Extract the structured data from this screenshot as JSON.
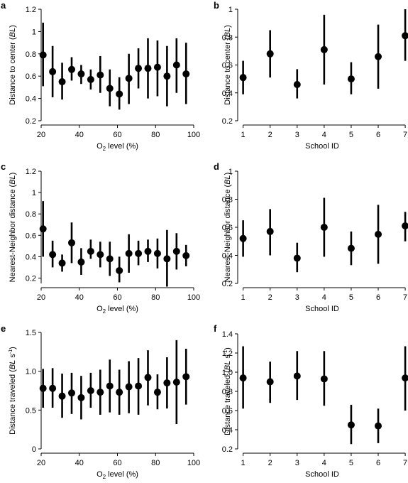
{
  "chart_data": [
    {
      "panel": "a",
      "type": "scatter",
      "xlabel": "O2 level (%)",
      "ylabel": "Distance to center (BL)",
      "xlim": [
        20,
        100
      ],
      "ylim": [
        0.2,
        1.2
      ],
      "xticks": [
        20,
        40,
        60,
        80,
        100
      ],
      "yticks": [
        0.2,
        0.4,
        0.6,
        0.8,
        1.0,
        1.2
      ],
      "ytick_labels": [
        "0.2",
        "0.4",
        "0.6",
        "0.8",
        "1",
        "1.2"
      ],
      "points": [
        {
          "x": 21,
          "y": 0.79,
          "lo": 0.51,
          "hi": 1.08
        },
        {
          "x": 26,
          "y": 0.64,
          "lo": 0.41,
          "hi": 0.87
        },
        {
          "x": 31,
          "y": 0.55,
          "lo": 0.39,
          "hi": 0.72
        },
        {
          "x": 36,
          "y": 0.66,
          "lo": 0.56,
          "hi": 0.77
        },
        {
          "x": 41,
          "y": 0.62,
          "lo": 0.53,
          "hi": 0.7
        },
        {
          "x": 46,
          "y": 0.57,
          "lo": 0.48,
          "hi": 0.66
        },
        {
          "x": 51,
          "y": 0.61,
          "lo": 0.45,
          "hi": 0.78
        },
        {
          "x": 56,
          "y": 0.49,
          "lo": 0.33,
          "hi": 0.66
        },
        {
          "x": 61,
          "y": 0.44,
          "lo": 0.3,
          "hi": 0.59
        },
        {
          "x": 66,
          "y": 0.58,
          "lo": 0.35,
          "hi": 0.8
        },
        {
          "x": 71,
          "y": 0.67,
          "lo": 0.49,
          "hi": 0.85
        },
        {
          "x": 76,
          "y": 0.67,
          "lo": 0.4,
          "hi": 0.94
        },
        {
          "x": 81,
          "y": 0.68,
          "lo": 0.42,
          "hi": 0.92
        },
        {
          "x": 86,
          "y": 0.6,
          "lo": 0.33,
          "hi": 0.87
        },
        {
          "x": 91,
          "y": 0.7,
          "lo": 0.45,
          "hi": 0.94
        },
        {
          "x": 96,
          "y": 0.62,
          "lo": 0.35,
          "hi": 0.9
        }
      ]
    },
    {
      "panel": "b",
      "type": "scatter",
      "xlabel": "School ID",
      "ylabel": "Distance to center (BL)",
      "xlim": [
        0.8,
        7.05
      ],
      "ylim": [
        0.2,
        1.0
      ],
      "xticks": [
        1,
        2,
        3,
        4,
        5,
        6,
        7
      ],
      "yticks": [
        0.2,
        0.4,
        0.6,
        0.8,
        1.0
      ],
      "ytick_labels": [
        "0.2",
        "0.4",
        "0.6",
        "0.8",
        "1"
      ],
      "points": [
        {
          "x": 1,
          "y": 0.51,
          "lo": 0.39,
          "hi": 0.63
        },
        {
          "x": 2,
          "y": 0.68,
          "lo": 0.51,
          "hi": 0.85
        },
        {
          "x": 3,
          "y": 0.46,
          "lo": 0.36,
          "hi": 0.57
        },
        {
          "x": 4,
          "y": 0.71,
          "lo": 0.46,
          "hi": 0.96
        },
        {
          "x": 5,
          "y": 0.5,
          "lo": 0.39,
          "hi": 0.62
        },
        {
          "x": 6,
          "y": 0.66,
          "lo": 0.43,
          "hi": 0.89
        },
        {
          "x": 7,
          "y": 0.81,
          "lo": 0.63,
          "hi": 1.0
        }
      ]
    },
    {
      "panel": "c",
      "type": "scatter",
      "xlabel": "O2 level (%)",
      "ylabel": "Nearest-Neighbor distance (BL)",
      "xlim": [
        20,
        100
      ],
      "ylim": [
        0.15,
        1.2
      ],
      "xticks": [
        20,
        40,
        60,
        80,
        100
      ],
      "yticks": [
        0.2,
        0.4,
        0.6,
        0.8,
        1.0,
        1.2
      ],
      "ytick_labels": [
        "0.2",
        "0.4",
        "0.6",
        "0.8",
        "1",
        "1.2"
      ],
      "points": [
        {
          "x": 21,
          "y": 0.66,
          "lo": 0.4,
          "hi": 0.92
        },
        {
          "x": 26,
          "y": 0.42,
          "lo": 0.3,
          "hi": 0.55
        },
        {
          "x": 31,
          "y": 0.34,
          "lo": 0.26,
          "hi": 0.42
        },
        {
          "x": 36,
          "y": 0.53,
          "lo": 0.34,
          "hi": 0.72
        },
        {
          "x": 41,
          "y": 0.35,
          "lo": 0.23,
          "hi": 0.48
        },
        {
          "x": 46,
          "y": 0.45,
          "lo": 0.38,
          "hi": 0.56
        },
        {
          "x": 51,
          "y": 0.42,
          "lo": 0.3,
          "hi": 0.54
        },
        {
          "x": 56,
          "y": 0.38,
          "lo": 0.22,
          "hi": 0.54
        },
        {
          "x": 61,
          "y": 0.27,
          "lo": 0.16,
          "hi": 0.4
        },
        {
          "x": 66,
          "y": 0.43,
          "lo": 0.25,
          "hi": 0.61
        },
        {
          "x": 71,
          "y": 0.43,
          "lo": 0.32,
          "hi": 0.55
        },
        {
          "x": 76,
          "y": 0.45,
          "lo": 0.35,
          "hi": 0.56
        },
        {
          "x": 81,
          "y": 0.43,
          "lo": 0.29,
          "hi": 0.57
        },
        {
          "x": 86,
          "y": 0.38,
          "lo": 0.12,
          "hi": 0.65
        },
        {
          "x": 91,
          "y": 0.45,
          "lo": 0.28,
          "hi": 0.62
        },
        {
          "x": 96,
          "y": 0.41,
          "lo": 0.31,
          "hi": 0.51
        }
      ]
    },
    {
      "panel": "d",
      "type": "scatter",
      "xlabel": "School ID",
      "ylabel": "Nearest-Neighbor distance (BL)",
      "xlim": [
        0.8,
        7.05
      ],
      "ylim": [
        0.2,
        1.0
      ],
      "xticks": [
        1,
        2,
        3,
        4,
        5,
        6,
        7
      ],
      "yticks": [
        0.2,
        0.4,
        0.6,
        0.8,
        1.0
      ],
      "ytick_labels": [
        "0.2",
        "0.4",
        "0.6",
        "0.8",
        "1"
      ],
      "points": [
        {
          "x": 1,
          "y": 0.52,
          "lo": 0.39,
          "hi": 0.65
        },
        {
          "x": 2,
          "y": 0.57,
          "lo": 0.4,
          "hi": 0.73
        },
        {
          "x": 3,
          "y": 0.38,
          "lo": 0.28,
          "hi": 0.49
        },
        {
          "x": 4,
          "y": 0.6,
          "lo": 0.39,
          "hi": 0.81
        },
        {
          "x": 5,
          "y": 0.45,
          "lo": 0.33,
          "hi": 0.57
        },
        {
          "x": 6,
          "y": 0.55,
          "lo": 0.34,
          "hi": 0.76
        },
        {
          "x": 7,
          "y": 0.61,
          "lo": 0.5,
          "hi": 0.71
        }
      ]
    },
    {
      "panel": "e",
      "type": "scatter",
      "xlabel": "O2 level (%)",
      "ylabel": "Distance traveled (BL s-1)",
      "xlim": [
        20,
        100
      ],
      "ylim": [
        0,
        1.5
      ],
      "xticks": [
        20,
        40,
        60,
        80,
        100
      ],
      "yticks": [
        0,
        0.5,
        1.0,
        1.5
      ],
      "ytick_labels": [
        "0",
        "0.5",
        "1.0",
        "1.5"
      ],
      "points": [
        {
          "x": 21,
          "y": 0.78,
          "lo": 0.53,
          "hi": 1.03
        },
        {
          "x": 26,
          "y": 0.78,
          "lo": 0.53,
          "hi": 1.04
        },
        {
          "x": 31,
          "y": 0.68,
          "lo": 0.4,
          "hi": 0.97
        },
        {
          "x": 36,
          "y": 0.72,
          "lo": 0.45,
          "hi": 0.98
        },
        {
          "x": 41,
          "y": 0.66,
          "lo": 0.38,
          "hi": 0.94
        },
        {
          "x": 46,
          "y": 0.75,
          "lo": 0.53,
          "hi": 0.98
        },
        {
          "x": 51,
          "y": 0.73,
          "lo": 0.44,
          "hi": 1.02
        },
        {
          "x": 56,
          "y": 0.81,
          "lo": 0.47,
          "hi": 1.15
        },
        {
          "x": 61,
          "y": 0.73,
          "lo": 0.44,
          "hi": 1.02
        },
        {
          "x": 66,
          "y": 0.8,
          "lo": 0.46,
          "hi": 1.13
        },
        {
          "x": 71,
          "y": 0.81,
          "lo": 0.44,
          "hi": 1.17
        },
        {
          "x": 76,
          "y": 0.92,
          "lo": 0.56,
          "hi": 1.27
        },
        {
          "x": 81,
          "y": 0.73,
          "lo": 0.51,
          "hi": 0.96
        },
        {
          "x": 86,
          "y": 0.85,
          "lo": 0.52,
          "hi": 1.18
        },
        {
          "x": 91,
          "y": 0.86,
          "lo": 0.32,
          "hi": 1.4
        },
        {
          "x": 96,
          "y": 0.93,
          "lo": 0.57,
          "hi": 1.29
        }
      ]
    },
    {
      "panel": "f",
      "type": "scatter",
      "xlabel": "School ID",
      "ylabel": "Distance traveled (BL s-1)",
      "xlim": [
        0.8,
        7.05
      ],
      "ylim": [
        0.2,
        1.4
      ],
      "xticks": [
        1,
        2,
        3,
        4,
        5,
        6,
        7
      ],
      "yticks": [
        0.2,
        0.4,
        0.6,
        0.8,
        1.0,
        1.2,
        1.4
      ],
      "ytick_labels": [
        "0.2",
        "0.4",
        "0.6",
        "0.8",
        "1.0",
        "1.2",
        "1.4"
      ],
      "points": [
        {
          "x": 1,
          "y": 0.94,
          "lo": 0.62,
          "hi": 1.27
        },
        {
          "x": 2,
          "y": 0.9,
          "lo": 0.68,
          "hi": 1.11
        },
        {
          "x": 3,
          "y": 0.96,
          "lo": 0.71,
          "hi": 1.22
        },
        {
          "x": 4,
          "y": 0.93,
          "lo": 0.65,
          "hi": 1.22
        },
        {
          "x": 5,
          "y": 0.45,
          "lo": 0.25,
          "hi": 0.66
        },
        {
          "x": 6,
          "y": 0.44,
          "lo": 0.26,
          "hi": 0.62
        },
        {
          "x": 7,
          "y": 0.94,
          "lo": 0.6,
          "hi": 1.27
        }
      ]
    }
  ],
  "panels": {
    "a": {
      "letter": "a",
      "xlabel_pre": "O",
      "xlabel_sub": "2",
      "xlabel_post": " level (%)",
      "ylabel_pre": "Distance to center (",
      "ylabel_unit": "BL",
      "ylabel_post": ")",
      "ylabel_sup": ""
    },
    "b": {
      "letter": "b",
      "xlabel_pre": "School ID",
      "xlabel_sub": "",
      "xlabel_post": "",
      "ylabel_pre": "Distance to center (",
      "ylabel_unit": "BL",
      "ylabel_post": ")",
      "ylabel_sup": ""
    },
    "c": {
      "letter": "c",
      "xlabel_pre": "O",
      "xlabel_sub": "2",
      "xlabel_post": " level (%)",
      "ylabel_pre": "Nearest-Neighbor distance (",
      "ylabel_unit": "BL",
      "ylabel_post": ")",
      "ylabel_sup": ""
    },
    "d": {
      "letter": "d",
      "xlabel_pre": "School ID",
      "xlabel_sub": "",
      "xlabel_post": "",
      "ylabel_pre": "Nearest-Neighbor distance (",
      "ylabel_unit": "BL",
      "ylabel_post": ")",
      "ylabel_sup": ""
    },
    "e": {
      "letter": "e",
      "xlabel_pre": "O",
      "xlabel_sub": "2",
      "xlabel_post": " level (%)",
      "ylabel_pre": "Distance traveled (",
      "ylabel_unit": "BL",
      "ylabel_post": " s",
      "ylabel_sup": "-1"
    },
    "f": {
      "letter": "f",
      "xlabel_pre": "School ID",
      "xlabel_sub": "",
      "xlabel_post": "",
      "ylabel_pre": "Distance traveled (",
      "ylabel_unit": "BL",
      "ylabel_post": " s",
      "ylabel_sup": "-1"
    }
  }
}
